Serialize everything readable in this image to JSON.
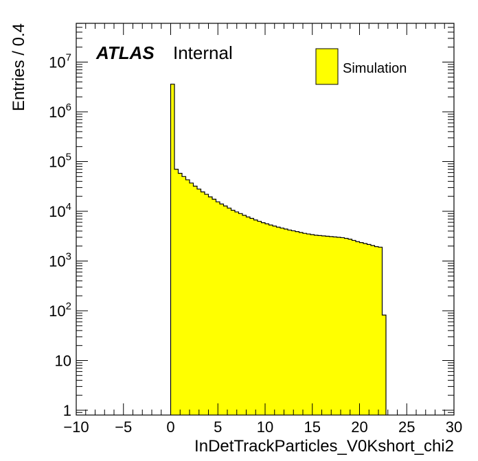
{
  "chart_data": {
    "type": "histogram",
    "xlabel": "InDetTrackParticles_V0Kshort_chi2",
    "ylabel": "Entries / 0.4",
    "xlim": [
      -10,
      30
    ],
    "ylim": [
      0.8,
      50000000
    ],
    "yscale": "log",
    "bin_width": 0.4,
    "x_ticks": [
      "−10",
      "−5",
      "0",
      "5",
      "10",
      "15",
      "20",
      "25",
      "30"
    ],
    "x_tick_values": [
      -10,
      -5,
      0,
      5,
      10,
      15,
      20,
      25,
      30
    ],
    "y_ticks": [
      {
        "value": 1,
        "base": "1",
        "exp": ""
      },
      {
        "value": 10,
        "base": "10",
        "exp": ""
      },
      {
        "value": 100,
        "base": "10",
        "exp": "2"
      },
      {
        "value": 1000,
        "base": "10",
        "exp": "3"
      },
      {
        "value": 10000,
        "base": "10",
        "exp": "4"
      },
      {
        "value": 100000,
        "base": "10",
        "exp": "5"
      },
      {
        "value": 1000000,
        "base": "10",
        "exp": "6"
      },
      {
        "value": 10000000,
        "base": "10",
        "exp": "7"
      }
    ],
    "label_main": "ATLAS",
    "label_sub": "Internal",
    "legend_position": "top-right",
    "series": [
      {
        "name": "Simulation",
        "color": "#ffff00",
        "line_color": "#000000",
        "bin_edges_start": 0.0,
        "values": [
          3600000,
          70000,
          58000,
          50000,
          43000,
          37000,
          32000,
          28000,
          24500,
          22000,
          19500,
          17500,
          15500,
          14000,
          12800,
          11600,
          10500,
          9700,
          9000,
          8300,
          7700,
          7200,
          6700,
          6300,
          5900,
          5600,
          5300,
          5050,
          4800,
          4600,
          4400,
          4200,
          4050,
          3900,
          3750,
          3600,
          3500,
          3400,
          3300,
          3250,
          3200,
          3150,
          3100,
          3050,
          3000,
          2950,
          2850,
          2750,
          2600,
          2450,
          2350,
          2250,
          2150,
          2050,
          1950,
          1900,
          82
        ]
      }
    ]
  }
}
